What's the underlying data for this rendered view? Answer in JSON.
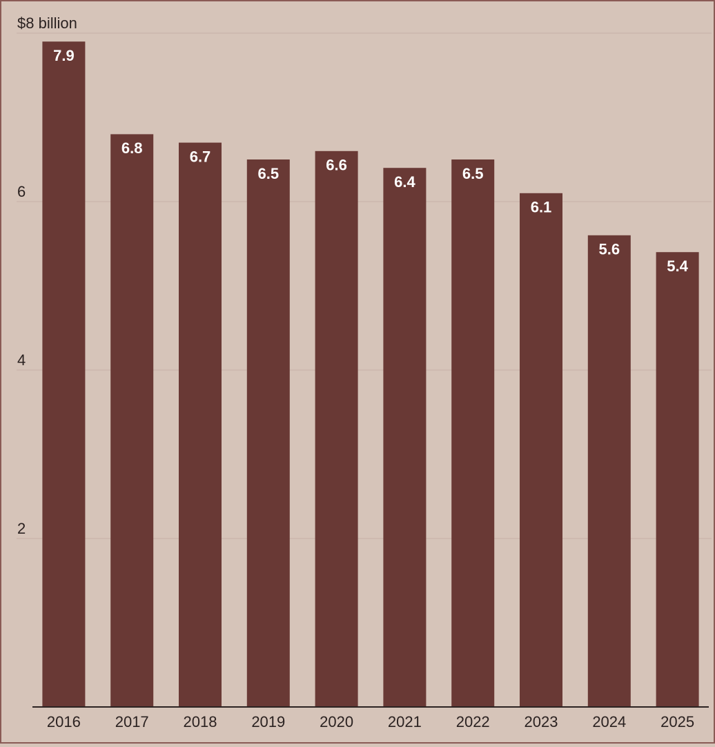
{
  "chart_data": {
    "type": "bar",
    "categories": [
      "2016",
      "2017",
      "2018",
      "2019",
      "2020",
      "2021",
      "2022",
      "2023",
      "2024",
      "2025"
    ],
    "values": [
      7.9,
      6.8,
      6.7,
      6.5,
      6.6,
      6.4,
      6.5,
      6.1,
      5.6,
      5.4
    ],
    "color": "#693935",
    "ylim": [
      0,
      8
    ],
    "yticks": [
      2,
      4,
      6,
      {
        "value": 8,
        "label": "$8 billion"
      }
    ],
    "grid": true
  }
}
